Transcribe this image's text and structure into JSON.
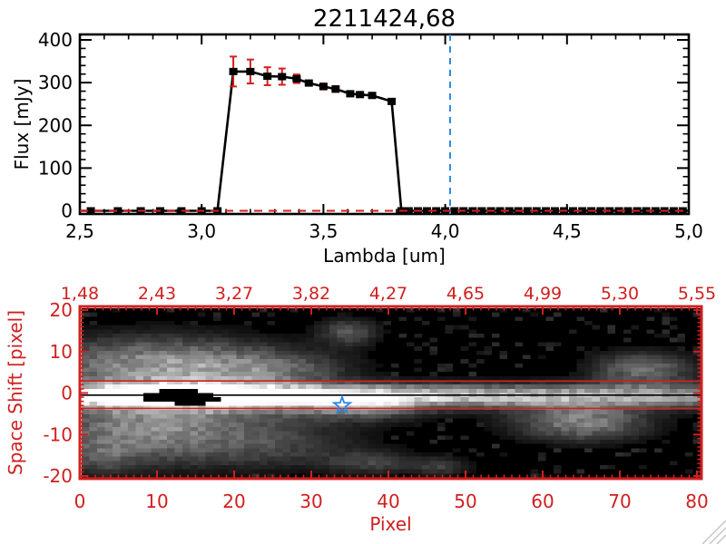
{
  "window": {
    "background": "#ffffff"
  },
  "colors": {
    "axis_black": "#000000",
    "red": "#d01f1f",
    "blue_dashed": "#2e8ae0",
    "star_blue": "#2f86df",
    "grip_gray": "#c6c6c6"
  },
  "chart_data": [
    {
      "id": "spectrum",
      "type": "line",
      "title": "2211424,68",
      "xlabel": "Lambda [um]",
      "ylabel": "Flux [mJy]",
      "xlim": [
        2.5,
        5.0
      ],
      "ylim": [
        0,
        400
      ],
      "xtick_labels": [
        "2,5",
        "3,0",
        "3,5",
        "4,0",
        "4,5",
        "5,0"
      ],
      "xtick_values": [
        2.5,
        3.0,
        3.5,
        4.0,
        4.5,
        5.0
      ],
      "minor_x_step": 0.1,
      "ytick_labels": [
        "0",
        "100",
        "200",
        "300",
        "400"
      ],
      "ytick_values": [
        0,
        100,
        200,
        300,
        400
      ],
      "minor_y_step": 20,
      "grid": false,
      "marker": "filled-square",
      "series": [
        {
          "name": "flux",
          "color": "#000000",
          "error_color": "#d01f1f",
          "points": [
            [
              2.545,
              0,
              0
            ],
            [
              2.656,
              0,
              0
            ],
            [
              2.75,
              0,
              0
            ],
            [
              2.83,
              0,
              0
            ],
            [
              2.917,
              0,
              0
            ],
            [
              3.0,
              0,
              0
            ],
            [
              3.065,
              0,
              0
            ],
            [
              3.13,
              326,
              35
            ],
            [
              3.2,
              326,
              28
            ],
            [
              3.27,
              315,
              21
            ],
            [
              3.33,
              314,
              19
            ],
            [
              3.39,
              309,
              10
            ],
            [
              3.44,
              299,
              6
            ],
            [
              3.5,
              291,
              7
            ],
            [
              3.55,
              285,
              7
            ],
            [
              3.61,
              274,
              6
            ],
            [
              3.65,
              272,
              5
            ],
            [
              3.7,
              270,
              5
            ],
            [
              3.78,
              256,
              4
            ],
            [
              3.82,
              0,
              0
            ],
            [
              3.85,
              0,
              0
            ],
            [
              3.888,
              0,
              0
            ],
            [
              3.925,
              0,
              0
            ],
            [
              3.963,
              0,
              0
            ],
            [
              4.0,
              0,
              0
            ],
            [
              4.038,
              0,
              0
            ],
            [
              4.075,
              0,
              0
            ],
            [
              4.113,
              0,
              0
            ],
            [
              4.15,
              0,
              0
            ],
            [
              4.188,
              0,
              0
            ],
            [
              4.225,
              0,
              0
            ],
            [
              4.263,
              0,
              0
            ],
            [
              4.3,
              0,
              0
            ],
            [
              4.338,
              0,
              0
            ],
            [
              4.375,
              0,
              0
            ],
            [
              4.413,
              0,
              0
            ],
            [
              4.45,
              0,
              0
            ],
            [
              4.488,
              0,
              0
            ],
            [
              4.525,
              0,
              0
            ],
            [
              4.563,
              0,
              0
            ],
            [
              4.6,
              0,
              0
            ],
            [
              4.638,
              0,
              0
            ],
            [
              4.675,
              0,
              0
            ],
            [
              4.713,
              0,
              0
            ],
            [
              4.75,
              0,
              0
            ],
            [
              4.788,
              0,
              0
            ],
            [
              4.825,
              0,
              0
            ],
            [
              4.863,
              0,
              0
            ],
            [
              4.9,
              0,
              0
            ],
            [
              4.938,
              0,
              0
            ],
            [
              4.975,
              0,
              0
            ]
          ]
        }
      ],
      "line_extends": [
        2.5,
        5.0
      ],
      "zero_line": {
        "value": 0,
        "style": "dashed",
        "color": "#d01f1f"
      },
      "vline": {
        "value": 4.02,
        "style": "dashed",
        "color": "#2e8ae0"
      }
    },
    {
      "id": "spectral-image",
      "type": "heatmap",
      "xlabel": "Pixel",
      "ylabel": "Space Shift [pixel]",
      "xlim": [
        0,
        80.6
      ],
      "ylim": [
        -20.8,
        20.8
      ],
      "xtick_labels": [
        "0",
        "10",
        "20",
        "30",
        "40",
        "50",
        "60",
        "70",
        "80"
      ],
      "xtick_values": [
        0,
        10,
        20,
        30,
        40,
        50,
        60,
        70,
        80
      ],
      "top_axis_labels": [
        "1,48",
        "2,43",
        "3,27",
        "3,82",
        "4,27",
        "4,65",
        "4,99",
        "5,30",
        "5,55"
      ],
      "ytick_labels": [
        "20",
        "10",
        "0",
        "-10",
        "-20"
      ],
      "ytick_values": [
        20,
        10,
        0,
        -10,
        -20
      ],
      "colormap": "grayscale",
      "band_profile": [
        [
          0,
          210
        ],
        [
          4,
          248
        ],
        [
          8,
          255
        ],
        [
          26,
          255
        ],
        [
          36,
          230
        ],
        [
          48,
          196
        ],
        [
          60,
          180
        ],
        [
          70,
          162
        ],
        [
          80,
          148
        ]
      ],
      "band_center": -0.7,
      "band_sigma": 2.0,
      "blobs": [
        {
          "x": 12,
          "y": -1,
          "sx": 10,
          "sy": 7.5,
          "amp": 120
        },
        {
          "x": 8,
          "y": 8,
          "sx": 11,
          "sy": 4.2,
          "amp": 88
        },
        {
          "x": 24,
          "y": 6,
          "sx": 7,
          "sy": 3,
          "amp": 66
        },
        {
          "x": 6,
          "y": -11,
          "sx": 9,
          "sy": 5,
          "amp": 80
        },
        {
          "x": 25,
          "y": -13,
          "sx": 8,
          "sy": 4,
          "amp": 52
        },
        {
          "x": 34,
          "y": 15,
          "sx": 2.6,
          "sy": 2.2,
          "amp": 85
        },
        {
          "x": 35,
          "y": -3.5,
          "sx": 6,
          "sy": 2.4,
          "amp": 95
        },
        {
          "x": 37,
          "y": -17,
          "sx": 4,
          "sy": 2,
          "amp": 60
        },
        {
          "x": 72,
          "y": 6,
          "sx": 4.5,
          "sy": 2.8,
          "amp": 110
        },
        {
          "x": 64,
          "y": -7,
          "sx": 6,
          "sy": 3.2,
          "amp": 128
        },
        {
          "x": 46,
          "y": -18,
          "sx": 2.5,
          "sy": 1.6,
          "amp": 58
        },
        {
          "x": 2,
          "y": -16,
          "sx": 3,
          "sy": 3,
          "amp": 45
        }
      ],
      "mask_spans": [
        [
          10,
          14,
          1
        ],
        [
          8,
          16,
          0
        ],
        [
          8,
          17,
          -1
        ],
        [
          9,
          16,
          -2
        ],
        [
          12,
          15,
          -3
        ]
      ],
      "noise_seed": 13,
      "aperture_lines": {
        "upper": 2.9,
        "lower": -3.7,
        "trace": -0.5,
        "color": "#d01f1f",
        "trace_color": "#000000"
      },
      "star": {
        "x": 34,
        "y": -3,
        "color": "#2f86df"
      }
    }
  ],
  "resize_grip": {
    "lines": 3
  }
}
